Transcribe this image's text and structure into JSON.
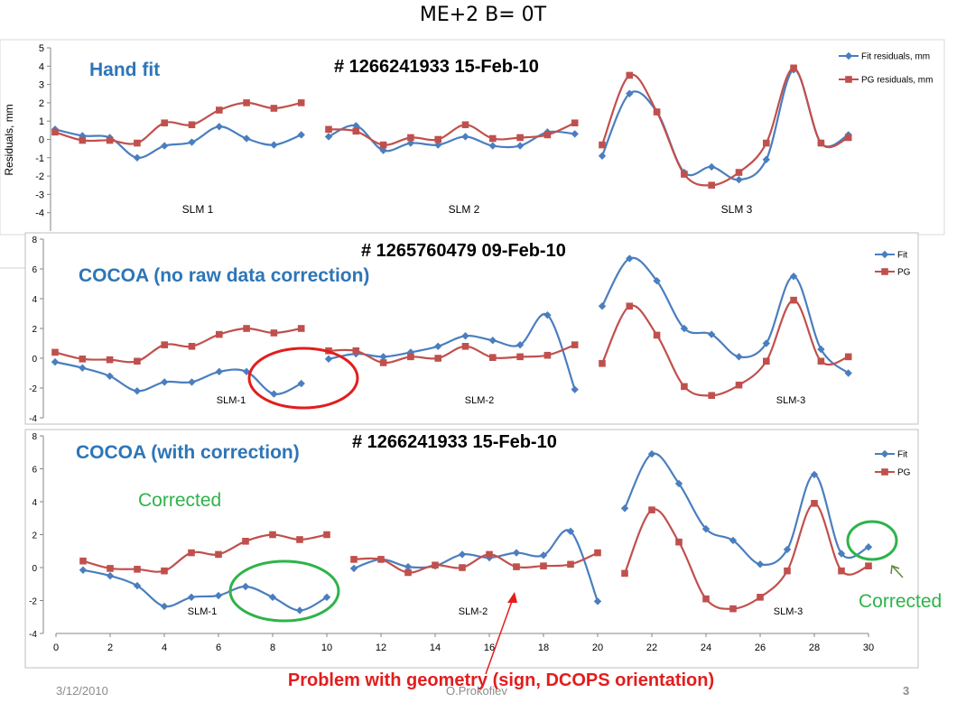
{
  "slide": {
    "title": "ME+2    B= 0T",
    "footer_date": "3/12/2010",
    "footer_author": "O.Prokofiev",
    "footer_page": "3",
    "problem_note": "Problem with geometry (sign, DCOPS orientation)",
    "colors": {
      "fit": "#4a7ebf",
      "pg": "#c0504d",
      "title_blue": "#2e75b6",
      "corrected_green": "#2eb34a",
      "problem_red": "#e31d1d",
      "ok_ellipse": "#2eb34a",
      "bad_ellipse": "#e31d1d"
    }
  },
  "chart_data": [
    {
      "type": "line",
      "panel": "top",
      "heading": "Hand fit",
      "run_label": "# 1266241933 15-Feb-10",
      "ylabel": "Residuals, mm",
      "ylim": [
        -5,
        5
      ],
      "yticks": [
        -4,
        -3,
        -2,
        -1,
        0,
        1,
        2,
        3,
        4,
        5
      ],
      "legend": [
        "Fit residuals, mm",
        "PG residuals, mm"
      ],
      "group_labels": [
        "SLM 1",
        "SLM 2",
        "SLM 3"
      ],
      "series": [
        {
          "name": "Fit residuals, mm",
          "x": [
            1,
            2,
            3,
            4,
            5,
            6,
            7,
            8,
            9,
            10,
            11,
            12,
            13,
            14,
            15,
            16,
            17,
            18,
            19,
            20,
            21,
            22,
            23,
            24,
            25,
            26,
            27,
            28,
            29,
            30
          ],
          "values": [
            0.55,
            0.2,
            0.1,
            -1.0,
            -0.35,
            -0.15,
            0.7,
            0.05,
            -0.3,
            0.25,
            0.15,
            0.75,
            -0.6,
            -0.2,
            -0.3,
            0.15,
            -0.35,
            -0.35,
            0.4,
            0.3,
            -0.9,
            2.5,
            1.5,
            -1.8,
            -1.5,
            -2.2,
            -1.1,
            3.8,
            -0.2,
            0.25
          ]
        },
        {
          "name": "PG residuals, mm",
          "x": [
            1,
            2,
            3,
            4,
            5,
            6,
            7,
            8,
            9,
            10,
            11,
            12,
            13,
            14,
            15,
            16,
            17,
            18,
            19,
            20,
            21,
            22,
            23,
            24,
            25,
            26,
            27,
            28,
            29,
            30
          ],
          "values": [
            0.4,
            -0.05,
            -0.05,
            -0.2,
            0.9,
            0.8,
            1.6,
            2.0,
            1.7,
            2.0,
            0.55,
            0.45,
            -0.3,
            0.1,
            0.0,
            0.8,
            0.05,
            0.1,
            0.25,
            0.9,
            -0.3,
            3.5,
            1.5,
            -1.9,
            -2.5,
            -1.8,
            -0.2,
            3.9,
            -0.2,
            0.1
          ]
        }
      ]
    },
    {
      "type": "line",
      "panel": "middle",
      "heading": "COCOA (no raw data correction)",
      "run_label": "# 1265760479 09-Feb-10",
      "ylim": [
        -4,
        8
      ],
      "yticks": [
        -4,
        -2,
        0,
        2,
        4,
        6,
        8
      ],
      "legend": [
        "Fit",
        "PG"
      ],
      "group_labels": [
        "SLM-1",
        "SLM-2",
        "SLM-3"
      ],
      "series": [
        {
          "name": "Fit",
          "x": [
            1,
            2,
            3,
            4,
            5,
            6,
            7,
            8,
            9,
            10,
            11,
            12,
            13,
            14,
            15,
            16,
            17,
            18,
            19,
            20,
            21,
            22,
            23,
            24,
            25,
            26,
            27,
            28,
            29,
            30
          ],
          "values": [
            -0.25,
            -0.65,
            -1.2,
            -2.2,
            -1.6,
            -1.6,
            -0.9,
            -0.9,
            -2.4,
            -1.7,
            -0.05,
            0.3,
            0.1,
            0.4,
            0.8,
            1.5,
            1.2,
            0.9,
            2.9,
            -2.1,
            3.5,
            6.7,
            5.2,
            2.0,
            1.6,
            0.1,
            1.0,
            5.5,
            0.6,
            -1.0
          ]
        },
        {
          "name": "PG",
          "x": [
            1,
            2,
            3,
            4,
            5,
            6,
            7,
            8,
            9,
            10,
            11,
            12,
            13,
            14,
            15,
            16,
            17,
            18,
            19,
            20,
            21,
            22,
            23,
            24,
            25,
            26,
            27,
            28,
            29,
            30
          ],
          "values": [
            0.4,
            -0.05,
            -0.1,
            -0.2,
            0.9,
            0.8,
            1.6,
            2.0,
            1.7,
            2.0,
            0.5,
            0.5,
            -0.3,
            0.1,
            0.0,
            0.8,
            0.05,
            0.1,
            0.2,
            0.9,
            -0.35,
            3.5,
            1.55,
            -1.9,
            -2.5,
            -1.8,
            -0.2,
            3.9,
            -0.2,
            0.1
          ]
        }
      ]
    },
    {
      "type": "line",
      "panel": "bottom",
      "heading": "COCOA (with correction)",
      "run_label": "# 1266241933 15-Feb-10",
      "ylim": [
        -4,
        8
      ],
      "yticks": [
        -4,
        -2,
        0,
        2,
        4,
        6,
        8
      ],
      "xlim": [
        0,
        30
      ],
      "xticks": [
        0,
        2,
        4,
        6,
        8,
        10,
        12,
        14,
        16,
        18,
        20,
        22,
        24,
        26,
        28,
        30
      ],
      "legend": [
        "Fit",
        "PG"
      ],
      "group_labels": [
        "SLM-1",
        "SLM-2",
        "SLM-3"
      ],
      "annotations": [
        "Corrected",
        "Corrected"
      ],
      "series": [
        {
          "name": "Fit",
          "x": [
            1,
            2,
            3,
            4,
            5,
            6,
            7,
            8,
            9,
            10,
            11,
            12,
            13,
            14,
            15,
            16,
            17,
            18,
            19,
            20,
            21,
            22,
            23,
            24,
            25,
            26,
            27,
            28,
            29,
            30
          ],
          "values": [
            -0.15,
            -0.5,
            -1.1,
            -2.35,
            -1.8,
            -1.7,
            -1.15,
            -1.8,
            -2.6,
            -1.8,
            -0.05,
            0.5,
            0.05,
            0.1,
            0.8,
            0.6,
            0.9,
            0.75,
            2.2,
            -2.05,
            3.6,
            6.9,
            5.1,
            2.35,
            1.65,
            0.2,
            1.1,
            5.65,
            0.85,
            1.25
          ]
        },
        {
          "name": "PG",
          "x": [
            1,
            2,
            3,
            4,
            5,
            6,
            7,
            8,
            9,
            10,
            11,
            12,
            13,
            14,
            15,
            16,
            17,
            18,
            19,
            20,
            21,
            22,
            23,
            24,
            25,
            26,
            27,
            28,
            29,
            30
          ],
          "values": [
            0.4,
            -0.05,
            -0.1,
            -0.2,
            0.9,
            0.8,
            1.6,
            2.0,
            1.7,
            2.0,
            0.5,
            0.5,
            -0.3,
            0.15,
            0.0,
            0.8,
            0.05,
            0.1,
            0.2,
            0.9,
            -0.35,
            3.5,
            1.55,
            -1.9,
            -2.5,
            -1.8,
            -0.2,
            3.9,
            -0.2,
            0.1
          ]
        }
      ]
    }
  ]
}
